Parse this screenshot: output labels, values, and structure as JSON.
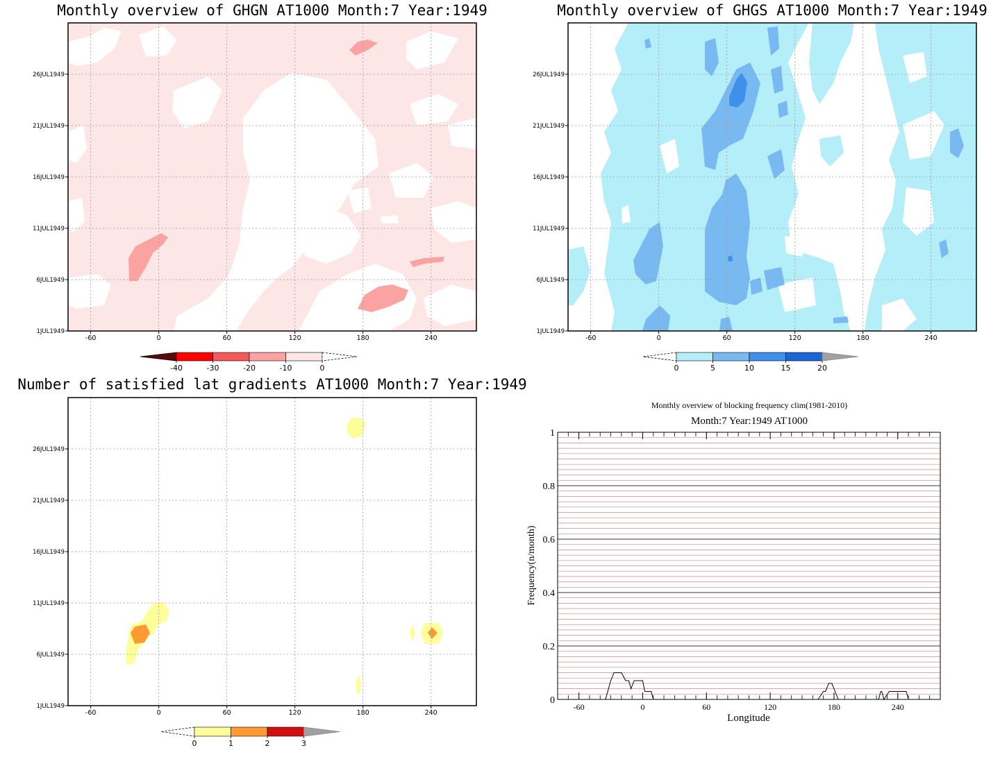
{
  "panels": {
    "ghgn": {
      "title": "Monthly overview of GHGN AT1000 Month:7 Year:1949",
      "x_ticks": [
        "-60",
        "0",
        "60",
        "120",
        "180",
        "240"
      ],
      "y_ticks": [
        "1JUL1949",
        "6JUL1949",
        "11JUL1949",
        "16JUL1949",
        "21JUL1949",
        "26JUL1949"
      ],
      "colorbar": {
        "labels": [
          "-40",
          "-30",
          "-20",
          "-10",
          "0"
        ],
        "colors": [
          "#5a0a0a",
          "#ff0000",
          "#f25a5a",
          "#fba3a3",
          "#fde6e6"
        ]
      }
    },
    "ghgs": {
      "title": "Monthly overview of GHGS AT1000 Month:7 Year:1949",
      "x_ticks": [
        "-60",
        "0",
        "60",
        "120",
        "180",
        "240"
      ],
      "y_ticks": [
        "1JUL1949",
        "6JUL1949",
        "11JUL1949",
        "16JUL1949",
        "21JUL1949",
        "26JUL1949"
      ],
      "colorbar": {
        "labels": [
          "0",
          "5",
          "10",
          "15",
          "20"
        ],
        "colors": [
          "#b4eef8",
          "#78b9f2",
          "#3f90ea",
          "#1b65d4",
          "#a0a0a0"
        ]
      }
    },
    "gradients": {
      "title": "Number of satisfied lat gradients AT1000 Month:7 Year:1949",
      "x_ticks": [
        "-60",
        "0",
        "60",
        "120",
        "180",
        "240"
      ],
      "y_ticks": [
        "1JUL1949",
        "6JUL1949",
        "11JUL1949",
        "16JUL1949",
        "21JUL1949",
        "26JUL1949"
      ],
      "colorbar": {
        "labels": [
          "0",
          "1",
          "2",
          "3"
        ],
        "colors": [
          "#fefe9a",
          "#ff9a35",
          "#d40e0e",
          "#a0a0a0"
        ]
      }
    },
    "frequency": {
      "title": "Monthly overview of blocking frequency clim(1981-2010)",
      "subtitle": "Month:7 Year:1949  AT1000",
      "xlabel": "Longitude",
      "ylabel": "Frequency(n/month)",
      "x_ticks": [
        "-60",
        "0",
        "60",
        "120",
        "180",
        "240"
      ],
      "y_ticks": [
        "0",
        "0.2",
        "0.4",
        "0.6",
        "0.8",
        "1"
      ]
    }
  },
  "chart_data": [
    {
      "type": "heatmap",
      "title": "Monthly overview of GHGN AT1000 Month:7 Year:1949",
      "xlim": [
        -80,
        280
      ],
      "ylim": [
        "1JUL1949",
        "31JUL1949"
      ],
      "levels": [
        -40,
        -30,
        -20,
        -10,
        0
      ],
      "grid": true
    },
    {
      "type": "heatmap",
      "title": "Monthly overview of GHGS AT1000 Month:7 Year:1949",
      "xlim": [
        -80,
        280
      ],
      "ylim": [
        "1JUL1949",
        "31JUL1949"
      ],
      "levels": [
        0,
        5,
        10,
        15,
        20
      ],
      "grid": true
    },
    {
      "type": "heatmap",
      "title": "Number of satisfied lat gradients AT1000 Month:7 Year:1949",
      "xlim": [
        -80,
        280
      ],
      "ylim": [
        "1JUL1949",
        "31JUL1949"
      ],
      "levels": [
        0,
        1,
        2,
        3
      ],
      "grid": true
    },
    {
      "type": "line",
      "title": "Monthly overview of blocking frequency clim(1981-2010)",
      "subtitle": "Month:7 Year:1949  AT1000",
      "xlabel": "Longitude",
      "ylabel": "Frequency(n/month)",
      "xlim": [
        -80,
        280
      ],
      "ylim": [
        0,
        1
      ],
      "grid": true,
      "series": [
        {
          "x": [
            -70,
            -35,
            -30,
            -27,
            -25,
            -20,
            -16,
            -13,
            -11,
            -8,
            -3,
            0,
            2,
            6,
            8,
            10,
            165,
            170,
            172,
            175,
            178,
            181,
            184,
            222,
            224,
            225,
            227,
            232,
            236,
            240,
            244,
            248,
            250,
            260
          ],
          "values": [
            0,
            0,
            0.07,
            0.1,
            0.1,
            0.1,
            0.07,
            0.07,
            0.04,
            0.07,
            0.07,
            0.07,
            0.03,
            0.03,
            0.03,
            0,
            0,
            0.03,
            0.03,
            0.06,
            0.06,
            0.03,
            0,
            0,
            0.03,
            0.03,
            0,
            0.03,
            0.03,
            0.03,
            0.03,
            0.03,
            0,
            0
          ]
        }
      ]
    }
  ]
}
